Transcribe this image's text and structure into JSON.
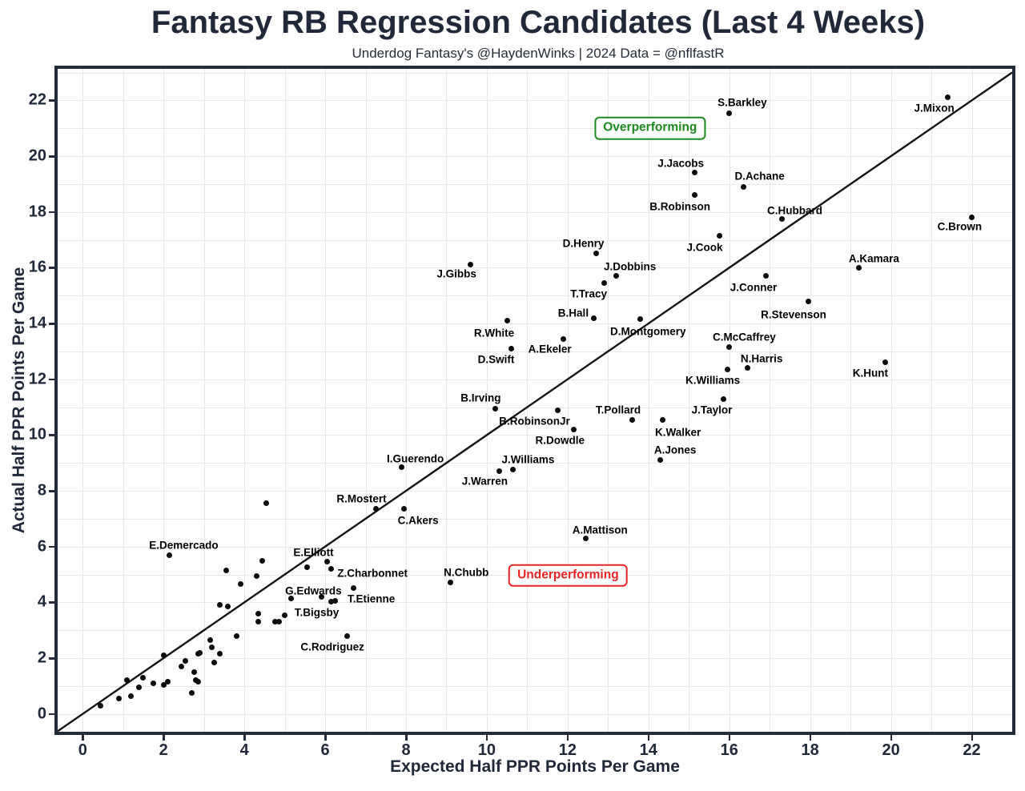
{
  "chart_data": {
    "type": "scatter",
    "title": "Fantasy RB Regression Candidates (Last 4 Weeks)",
    "subtitle": "Underdog Fantasy's @HaydenWinks | 2024 Data = @nflfastR",
    "xlabel": "Expected Half PPR Points Per Game",
    "ylabel": "Actual Half PPR Points Per Game",
    "xlim": [
      -0.62,
      23.0
    ],
    "ylim": [
      -0.64,
      23.13
    ],
    "xticks": [
      0,
      2,
      4,
      6,
      8,
      10,
      12,
      14,
      16,
      18,
      20,
      22
    ],
    "yticks": [
      0,
      2,
      4,
      6,
      8,
      10,
      12,
      14,
      16,
      18,
      20,
      22
    ],
    "grid": "on",
    "grid_step": 1,
    "reference_line": {
      "type": "identity y=x",
      "x1": -0.62,
      "y1": -0.62,
      "x2": 23.0,
      "y2": 23.0
    },
    "annotations": [
      {
        "text": "Overperforming",
        "x": 14.04,
        "y": 21.0,
        "color": "#1d8a1d"
      },
      {
        "text": "Underperforming",
        "x": 12.01,
        "y": 4.97,
        "color": "#e62424"
      }
    ],
    "labeled_points": [
      {
        "name": "S.Barkley",
        "x": 16.0,
        "y": 21.55,
        "lx": 16.32,
        "ly": 21.91
      },
      {
        "name": "J.Mixon",
        "x": 21.4,
        "y": 22.1,
        "lx": 21.07,
        "ly": 21.71
      },
      {
        "name": "J.Jacobs",
        "x": 15.15,
        "y": 19.4,
        "lx": 14.8,
        "ly": 19.74
      },
      {
        "name": "D.Achane",
        "x": 16.35,
        "y": 18.9,
        "lx": 16.75,
        "ly": 19.29
      },
      {
        "name": "B.Robinson",
        "x": 15.15,
        "y": 18.6,
        "lx": 14.78,
        "ly": 18.19
      },
      {
        "name": "C.Hubbard",
        "x": 17.3,
        "y": 17.75,
        "lx": 17.62,
        "ly": 18.05
      },
      {
        "name": "C.Brown",
        "x": 22.0,
        "y": 17.8,
        "lx": 21.7,
        "ly": 17.47
      },
      {
        "name": "D.Henry",
        "x": 12.7,
        "y": 16.5,
        "lx": 12.39,
        "ly": 16.87
      },
      {
        "name": "J.Cook",
        "x": 15.75,
        "y": 17.15,
        "lx": 15.39,
        "ly": 16.73
      },
      {
        "name": "J.Gibbs",
        "x": 9.6,
        "y": 16.1,
        "lx": 9.25,
        "ly": 15.77
      },
      {
        "name": "J.Dobbins",
        "x": 13.2,
        "y": 15.7,
        "lx": 13.54,
        "ly": 16.03
      },
      {
        "name": "A.Kamara",
        "x": 19.2,
        "y": 16.0,
        "lx": 19.58,
        "ly": 16.34
      },
      {
        "name": "T.Tracy",
        "x": 12.9,
        "y": 15.45,
        "lx": 12.52,
        "ly": 15.05
      },
      {
        "name": "J.Conner",
        "x": 16.9,
        "y": 15.7,
        "lx": 16.6,
        "ly": 15.29
      },
      {
        "name": "B.Hall",
        "x": 12.65,
        "y": 14.2,
        "lx": 12.14,
        "ly": 14.38
      },
      {
        "name": "R.Stevenson",
        "x": 17.95,
        "y": 14.8,
        "lx": 17.59,
        "ly": 14.33
      },
      {
        "name": "R.White",
        "x": 10.5,
        "y": 14.1,
        "lx": 10.18,
        "ly": 13.66
      },
      {
        "name": "D.Montgomery",
        "x": 13.8,
        "y": 14.15,
        "lx": 13.99,
        "ly": 13.72
      },
      {
        "name": "C.McCaffrey",
        "x": 16.0,
        "y": 13.15,
        "lx": 16.37,
        "ly": 13.5
      },
      {
        "name": "D.Swift",
        "x": 10.6,
        "y": 13.1,
        "lx": 10.23,
        "ly": 12.7
      },
      {
        "name": "A.Ekeler",
        "x": 11.9,
        "y": 13.45,
        "lx": 11.56,
        "ly": 13.09
      },
      {
        "name": "N.Harris",
        "x": 16.45,
        "y": 12.4,
        "lx": 16.8,
        "ly": 12.73
      },
      {
        "name": "K.Hunt",
        "x": 19.85,
        "y": 12.6,
        "lx": 19.49,
        "ly": 12.23
      },
      {
        "name": "K.Williams",
        "x": 15.95,
        "y": 12.35,
        "lx": 15.59,
        "ly": 11.96
      },
      {
        "name": "B.Irving",
        "x": 10.2,
        "y": 10.95,
        "lx": 9.85,
        "ly": 11.34
      },
      {
        "name": "J.Taylor",
        "x": 15.85,
        "y": 11.3,
        "lx": 15.57,
        "ly": 10.91
      },
      {
        "name": "T.Pollard",
        "x": 13.6,
        "y": 10.55,
        "lx": 13.25,
        "ly": 10.91
      },
      {
        "name": "B.RobinsonJr",
        "x": 11.75,
        "y": 10.9,
        "lx": 11.18,
        "ly": 10.5
      },
      {
        "name": "K.Walker",
        "x": 14.35,
        "y": 10.55,
        "lx": 14.73,
        "ly": 10.1
      },
      {
        "name": "R.Dowdle",
        "x": 12.15,
        "y": 10.2,
        "lx": 11.81,
        "ly": 9.8
      },
      {
        "name": "A.Jones",
        "x": 14.3,
        "y": 9.1,
        "lx": 14.66,
        "ly": 9.46
      },
      {
        "name": "I.Guerendo",
        "x": 7.9,
        "y": 8.85,
        "lx": 8.23,
        "ly": 9.16
      },
      {
        "name": "J.Williams",
        "x": 10.65,
        "y": 8.75,
        "lx": 11.02,
        "ly": 9.11
      },
      {
        "name": "J.Warren",
        "x": 10.3,
        "y": 8.7,
        "lx": 9.95,
        "ly": 8.35
      },
      {
        "name": "R.Mostert",
        "x": 7.25,
        "y": 7.35,
        "lx": 6.9,
        "ly": 7.7
      },
      {
        "name": "C.Akers",
        "x": 7.95,
        "y": 7.35,
        "lx": 8.3,
        "ly": 6.94
      },
      {
        "name": "A.Mattison",
        "x": 12.45,
        "y": 6.3,
        "lx": 12.8,
        "ly": 6.6
      },
      {
        "name": "E.Demercado",
        "x": 2.15,
        "y": 5.7,
        "lx": 2.5,
        "ly": 6.05
      },
      {
        "name": "E.Elliott",
        "x": 5.55,
        "y": 5.25,
        "lx": 5.71,
        "ly": 5.79
      },
      {
        "name": "Z.Charbonnet",
        "x": 6.15,
        "y": 5.2,
        "lx": 7.17,
        "ly": 5.04
      },
      {
        "name": "N.Chubb",
        "x": 9.1,
        "y": 4.7,
        "lx": 9.49,
        "ly": 5.07
      },
      {
        "name": "G.Edwards",
        "x": 5.15,
        "y": 4.15,
        "lx": 5.71,
        "ly": 4.42
      },
      {
        "name": "T.Etienne",
        "x": 6.7,
        "y": 4.5,
        "lx": 7.14,
        "ly": 4.13
      },
      {
        "name": "T.Bigsby",
        "x": 5.0,
        "y": 3.55,
        "lx": 5.79,
        "ly": 3.63
      },
      {
        "name": "C.Rodriguez",
        "x": 6.55,
        "y": 2.8,
        "lx": 6.18,
        "ly": 2.39
      }
    ],
    "unlabeled_points": [
      [
        4.55,
        7.55
      ],
      [
        3.55,
        5.15
      ],
      [
        4.45,
        5.5
      ],
      [
        4.3,
        4.95
      ],
      [
        3.9,
        4.65
      ],
      [
        6.05,
        5.45
      ],
      [
        5.9,
        4.2
      ],
      [
        6.15,
        4.03
      ],
      [
        6.25,
        4.06
      ],
      [
        4.35,
        3.6
      ],
      [
        4.35,
        3.3
      ],
      [
        4.75,
        3.3
      ],
      [
        4.85,
        3.3
      ],
      [
        3.4,
        3.9
      ],
      [
        3.6,
        3.85
      ],
      [
        3.8,
        2.8
      ],
      [
        3.15,
        2.65
      ],
      [
        3.2,
        2.4
      ],
      [
        2.85,
        2.15
      ],
      [
        2.9,
        2.2
      ],
      [
        3.4,
        2.15
      ],
      [
        3.25,
        1.85
      ],
      [
        2.0,
        2.1
      ],
      [
        2.55,
        1.9
      ],
      [
        2.45,
        1.7
      ],
      [
        2.75,
        1.5
      ],
      [
        2.8,
        1.2
      ],
      [
        2.85,
        1.15
      ],
      [
        1.75,
        1.1
      ],
      [
        1.4,
        0.95
      ],
      [
        1.5,
        1.3
      ],
      [
        1.1,
        1.2
      ],
      [
        2.0,
        1.05
      ],
      [
        2.1,
        1.15
      ],
      [
        2.7,
        0.75
      ],
      [
        0.45,
        0.3
      ],
      [
        0.9,
        0.55
      ],
      [
        1.2,
        0.65
      ]
    ],
    "colors": {
      "axis_text": "#20283a",
      "panel_border": "#242c3c",
      "grid": "#e8e8e8",
      "point": "#0b0b0b",
      "reference_line": "#141414",
      "overperforming": "#1d8a1d",
      "underperforming": "#e62424"
    }
  }
}
